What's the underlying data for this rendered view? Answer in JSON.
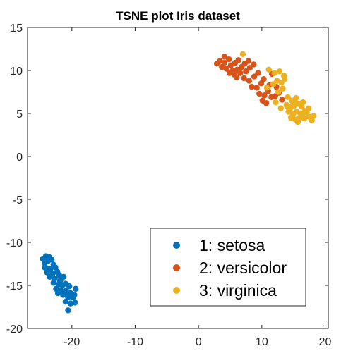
{
  "chart_data": {
    "type": "scatter",
    "title": "TSNE plot Iris dataset",
    "xlabel": "",
    "ylabel": "",
    "xlim": [
      -27,
      20.5
    ],
    "ylim": [
      -20,
      15
    ],
    "xticks": [
      -20,
      -10,
      0,
      10,
      20
    ],
    "yticks": [
      15,
      10,
      5,
      0,
      -5,
      -10,
      -15,
      -20
    ],
    "grid": false,
    "legend_position": "bottom-right",
    "series": [
      {
        "name": "1: setosa",
        "color": "#0072BD",
        "points": [
          [
            -24.6,
            -11.9
          ],
          [
            -24.1,
            -11.6
          ],
          [
            -23.6,
            -11.7
          ],
          [
            -24.3,
            -12.4
          ],
          [
            -23.8,
            -12.2
          ],
          [
            -23.2,
            -12.0
          ],
          [
            -22.9,
            -12.6
          ],
          [
            -24.0,
            -13.0
          ],
          [
            -23.4,
            -13.1
          ],
          [
            -22.6,
            -12.9
          ],
          [
            -23.9,
            -13.5
          ],
          [
            -23.0,
            -13.6
          ],
          [
            -22.3,
            -13.4
          ],
          [
            -22.0,
            -13.8
          ],
          [
            -23.5,
            -14.0
          ],
          [
            -22.7,
            -14.2
          ],
          [
            -21.8,
            -14.4
          ],
          [
            -21.3,
            -14.0
          ],
          [
            -22.9,
            -14.7
          ],
          [
            -22.1,
            -14.9
          ],
          [
            -21.5,
            -15.0
          ],
          [
            -21.0,
            -14.8
          ],
          [
            -20.4,
            -15.1
          ],
          [
            -22.5,
            -15.4
          ],
          [
            -21.7,
            -15.6
          ],
          [
            -20.9,
            -15.6
          ],
          [
            -20.2,
            -15.9
          ],
          [
            -19.4,
            -15.4
          ],
          [
            -21.4,
            -16.1
          ],
          [
            -20.6,
            -16.4
          ],
          [
            -19.8,
            -16.4
          ],
          [
            -21.0,
            -16.9
          ],
          [
            -20.2,
            -17.1
          ],
          [
            -19.5,
            -17.0
          ],
          [
            -20.6,
            -17.9
          ],
          [
            -22.2,
            -15.9
          ],
          [
            -20.8,
            -16.0
          ],
          [
            -19.6,
            -16.1
          ],
          [
            -21.9,
            -14.6
          ],
          [
            -24.3,
            -12.9
          ]
        ]
      },
      {
        "name": "2: versicolor",
        "color": "#D95319",
        "points": [
          [
            2.9,
            10.8
          ],
          [
            3.4,
            11.1
          ],
          [
            4.1,
            10.9
          ],
          [
            4.8,
            11.3
          ],
          [
            3.7,
            10.4
          ],
          [
            4.4,
            10.2
          ],
          [
            5.1,
            10.6
          ],
          [
            5.8,
            10.9
          ],
          [
            6.3,
            11.2
          ],
          [
            5.4,
            10.0
          ],
          [
            6.1,
            10.1
          ],
          [
            6.8,
            10.4
          ],
          [
            7.3,
            10.8
          ],
          [
            4.9,
            9.7
          ],
          [
            5.7,
            9.5
          ],
          [
            6.6,
            9.7
          ],
          [
            7.5,
            9.9
          ],
          [
            8.1,
            10.3
          ],
          [
            8.7,
            10.7
          ],
          [
            7.2,
            9.1
          ],
          [
            8.0,
            8.8
          ],
          [
            8.8,
            9.3
          ],
          [
            9.4,
            9.7
          ],
          [
            8.4,
            8.1
          ],
          [
            9.2,
            8.0
          ],
          [
            9.9,
            8.5
          ],
          [
            10.3,
            9.0
          ],
          [
            9.6,
            7.3
          ],
          [
            10.4,
            7.1
          ],
          [
            11.0,
            7.6
          ],
          [
            10.1,
            6.5
          ],
          [
            10.7,
            6.2
          ],
          [
            11.5,
            6.9
          ],
          [
            11.2,
            8.3
          ],
          [
            12.3,
            8.1
          ],
          [
            12.7,
            7.4
          ],
          [
            11.6,
            9.6
          ],
          [
            6.0,
            9.2
          ],
          [
            4.1,
            11.6
          ],
          [
            7.9,
            11.1
          ],
          [
            12.1,
            7.0
          ],
          [
            13.2,
            6.6
          ]
        ]
      },
      {
        "name": "3: virginica",
        "color": "#EDB120",
        "points": [
          [
            7.0,
            11.9
          ],
          [
            11.1,
            10.1
          ],
          [
            12.0,
            9.7
          ],
          [
            12.8,
            9.9
          ],
          [
            13.5,
            9.4
          ],
          [
            12.4,
            8.8
          ],
          [
            13.1,
            8.6
          ],
          [
            11.8,
            8.4
          ],
          [
            13.3,
            7.9
          ],
          [
            12.6,
            7.5
          ],
          [
            14.1,
            6.9
          ],
          [
            14.7,
            6.5
          ],
          [
            15.4,
            6.8
          ],
          [
            13.9,
            6.0
          ],
          [
            14.5,
            5.6
          ],
          [
            15.1,
            5.9
          ],
          [
            15.8,
            6.1
          ],
          [
            16.3,
            5.8
          ],
          [
            14.2,
            5.2
          ],
          [
            14.9,
            4.9
          ],
          [
            15.5,
            5.2
          ],
          [
            16.1,
            5.0
          ],
          [
            16.8,
            5.3
          ],
          [
            17.4,
            5.6
          ],
          [
            14.6,
            4.5
          ],
          [
            15.3,
            4.3
          ],
          [
            16.0,
            4.5
          ],
          [
            16.7,
            4.4
          ],
          [
            17.5,
            4.6
          ],
          [
            18.2,
            4.7
          ],
          [
            17.9,
            4.2
          ],
          [
            15.7,
            4.0
          ],
          [
            14.0,
            5.8
          ],
          [
            16.5,
            6.3
          ],
          [
            13.6,
            9.0
          ],
          [
            12.2,
            6.3
          ],
          [
            10.8,
            8.0
          ],
          [
            17.1,
            5.1
          ],
          [
            15.2,
            6.4
          ],
          [
            16.4,
            4.9
          ],
          [
            13.0,
            5.6
          ],
          [
            14.8,
            5.9
          ]
        ]
      }
    ]
  }
}
